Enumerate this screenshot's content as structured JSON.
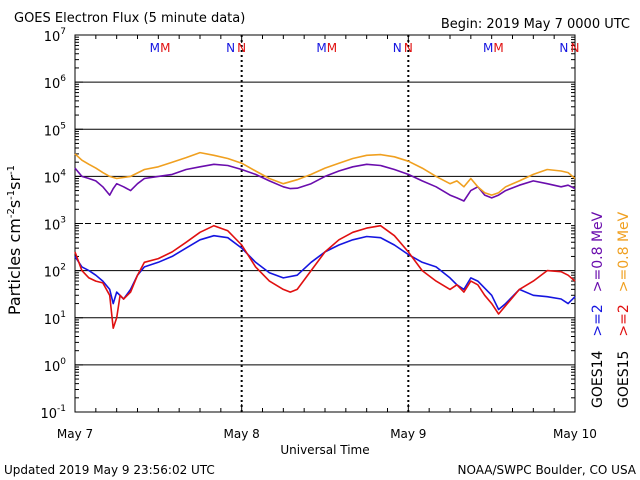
{
  "chart_data": {
    "type": "line",
    "title": "GOES Electron Flux (5 minute data)",
    "begin": "Begin: 2019 May 7 0000 UTC",
    "xlabel": "Universal Time",
    "ylabel_main": "Particles cm",
    "ylabel_exp1": "-2",
    "ylabel_s": "s",
    "ylabel_exp2": "-1",
    "ylabel_sr": "sr",
    "ylabel_exp3": "-1",
    "yscale": "log",
    "ylim": [
      0.1,
      10000000
    ],
    "y_ticks": [
      {
        "base": "10",
        "exp": "7"
      },
      {
        "base": "10",
        "exp": "6"
      },
      {
        "base": "10",
        "exp": "5"
      },
      {
        "base": "10",
        "exp": "4"
      },
      {
        "base": "10",
        "exp": "3"
      },
      {
        "base": "10",
        "exp": "2"
      },
      {
        "base": "10",
        "exp": "1"
      },
      {
        "base": "10",
        "exp": "0"
      },
      {
        "base": "10",
        "exp": "-1"
      }
    ],
    "x_ticks": [
      "May 7",
      "May 8",
      "May 9",
      "May 10"
    ],
    "xlim_hours": [
      0,
      72
    ],
    "grid": "horizontal",
    "threshold_line": 1000,
    "markers": [
      {
        "hour": 11.5,
        "label": "M",
        "color": "#1515e0"
      },
      {
        "hour": 13.0,
        "label": "M",
        "color": "#e01010"
      },
      {
        "hour": 22.4,
        "label": "N",
        "color": "#1515e0"
      },
      {
        "hour": 24.0,
        "label": "N",
        "color": "#e01010"
      },
      {
        "hour": 35.5,
        "label": "M",
        "color": "#1515e0"
      },
      {
        "hour": 37.0,
        "label": "M",
        "color": "#e01010"
      },
      {
        "hour": 46.4,
        "label": "N",
        "color": "#1515e0"
      },
      {
        "hour": 48.0,
        "label": "N",
        "color": "#e01010"
      },
      {
        "hour": 59.5,
        "label": "M",
        "color": "#1515e0"
      },
      {
        "hour": 61.0,
        "label": "M",
        "color": "#e01010"
      },
      {
        "hour": 70.4,
        "label": "N",
        "color": "#1515e0"
      },
      {
        "hour": 72.0,
        "label": "N",
        "color": "#e01010"
      }
    ],
    "series": [
      {
        "name": ">=0.8 MeV",
        "satellite": "GOES14",
        "color": "#6a0dad",
        "points": [
          [
            0,
            15000
          ],
          [
            1,
            10000
          ],
          [
            2,
            9000
          ],
          [
            3,
            8000
          ],
          [
            4,
            6000
          ],
          [
            5,
            4000
          ],
          [
            5.5,
            5500
          ],
          [
            6,
            7000
          ],
          [
            7,
            6000
          ],
          [
            8,
            5000
          ],
          [
            9,
            7000
          ],
          [
            10,
            9000
          ],
          [
            12,
            10000
          ],
          [
            14,
            11000
          ],
          [
            16,
            14000
          ],
          [
            18,
            16000
          ],
          [
            20,
            18000
          ],
          [
            22,
            17000
          ],
          [
            24,
            14000
          ],
          [
            26,
            11000
          ],
          [
            28,
            8000
          ],
          [
            30,
            6000
          ],
          [
            31,
            5500
          ],
          [
            32,
            5600
          ],
          [
            34,
            7000
          ],
          [
            36,
            10000
          ],
          [
            38,
            13000
          ],
          [
            40,
            16000
          ],
          [
            42,
            18000
          ],
          [
            44,
            17000
          ],
          [
            46,
            14000
          ],
          [
            48,
            11000
          ],
          [
            50,
            8000
          ],
          [
            52,
            6000
          ],
          [
            54,
            4000
          ],
          [
            55,
            3500
          ],
          [
            56,
            3000
          ],
          [
            57,
            5000
          ],
          [
            58,
            6000
          ],
          [
            59,
            4000
          ],
          [
            60,
            3500
          ],
          [
            61,
            4000
          ],
          [
            62,
            5000
          ],
          [
            64,
            6500
          ],
          [
            66,
            8000
          ],
          [
            68,
            7000
          ],
          [
            70,
            6000
          ],
          [
            71,
            6500
          ],
          [
            72,
            5500
          ]
        ]
      },
      {
        "name": ">=0.8 MeV",
        "satellite": "GOES15",
        "color": "#f0a020",
        "points": [
          [
            0,
            30000
          ],
          [
            1,
            22000
          ],
          [
            2,
            18000
          ],
          [
            3,
            15000
          ],
          [
            4,
            12000
          ],
          [
            5,
            10000
          ],
          [
            6,
            9000
          ],
          [
            8,
            10000
          ],
          [
            10,
            14000
          ],
          [
            12,
            16000
          ],
          [
            14,
            20000
          ],
          [
            16,
            25000
          ],
          [
            18,
            32000
          ],
          [
            20,
            28000
          ],
          [
            22,
            24000
          ],
          [
            24,
            19000
          ],
          [
            26,
            13000
          ],
          [
            28,
            9000
          ],
          [
            30,
            7000
          ],
          [
            32,
            8500
          ],
          [
            34,
            11000
          ],
          [
            36,
            15000
          ],
          [
            38,
            19000
          ],
          [
            40,
            24000
          ],
          [
            42,
            28000
          ],
          [
            44,
            29000
          ],
          [
            46,
            26000
          ],
          [
            48,
            21000
          ],
          [
            50,
            15000
          ],
          [
            52,
            10000
          ],
          [
            54,
            7000
          ],
          [
            55,
            8000
          ],
          [
            56,
            6000
          ],
          [
            57,
            9000
          ],
          [
            58,
            6000
          ],
          [
            59,
            4500
          ],
          [
            60,
            4000
          ],
          [
            61,
            4500
          ],
          [
            62,
            6000
          ],
          [
            64,
            8000
          ],
          [
            66,
            11000
          ],
          [
            68,
            14000
          ],
          [
            70,
            13000
          ],
          [
            71,
            12000
          ],
          [
            72,
            9000
          ]
        ]
      },
      {
        "name": ">=2 MeV",
        "satellite": "GOES14",
        "color": "#1515e0",
        "points": [
          [
            0,
            200
          ],
          [
            1,
            120
          ],
          [
            2,
            100
          ],
          [
            3,
            80
          ],
          [
            4,
            60
          ],
          [
            5,
            40
          ],
          [
            5.5,
            20
          ],
          [
            6,
            35
          ],
          [
            7,
            25
          ],
          [
            8,
            40
          ],
          [
            9,
            80
          ],
          [
            10,
            120
          ],
          [
            12,
            150
          ],
          [
            14,
            200
          ],
          [
            16,
            300
          ],
          [
            18,
            450
          ],
          [
            20,
            550
          ],
          [
            22,
            500
          ],
          [
            24,
            300
          ],
          [
            26,
            150
          ],
          [
            28,
            90
          ],
          [
            30,
            70
          ],
          [
            32,
            80
          ],
          [
            34,
            150
          ],
          [
            36,
            250
          ],
          [
            38,
            350
          ],
          [
            40,
            450
          ],
          [
            42,
            530
          ],
          [
            44,
            500
          ],
          [
            46,
            350
          ],
          [
            48,
            220
          ],
          [
            50,
            150
          ],
          [
            52,
            120
          ],
          [
            54,
            70
          ],
          [
            55,
            50
          ],
          [
            56,
            40
          ],
          [
            57,
            70
          ],
          [
            58,
            60
          ],
          [
            60,
            30
          ],
          [
            61,
            15
          ],
          [
            62,
            20
          ],
          [
            64,
            40
          ],
          [
            66,
            30
          ],
          [
            68,
            28
          ],
          [
            70,
            25
          ],
          [
            71,
            20
          ],
          [
            72,
            28
          ]
        ]
      },
      {
        "name": ">=2 MeV",
        "satellite": "GOES15",
        "color": "#e01010",
        "points": [
          [
            0,
            250
          ],
          [
            1,
            100
          ],
          [
            2,
            70
          ],
          [
            3,
            60
          ],
          [
            4,
            55
          ],
          [
            5,
            30
          ],
          [
            5.5,
            6
          ],
          [
            6,
            10
          ],
          [
            6.5,
            30
          ],
          [
            7,
            25
          ],
          [
            8,
            35
          ],
          [
            9,
            80
          ],
          [
            10,
            150
          ],
          [
            12,
            180
          ],
          [
            14,
            250
          ],
          [
            16,
            400
          ],
          [
            18,
            650
          ],
          [
            20,
            900
          ],
          [
            22,
            700
          ],
          [
            24,
            350
          ],
          [
            26,
            120
          ],
          [
            28,
            60
          ],
          [
            30,
            40
          ],
          [
            31,
            35
          ],
          [
            32,
            40
          ],
          [
            34,
            100
          ],
          [
            36,
            250
          ],
          [
            38,
            450
          ],
          [
            40,
            650
          ],
          [
            42,
            800
          ],
          [
            44,
            900
          ],
          [
            46,
            550
          ],
          [
            48,
            250
          ],
          [
            50,
            100
          ],
          [
            52,
            60
          ],
          [
            54,
            40
          ],
          [
            55,
            50
          ],
          [
            56,
            35
          ],
          [
            57,
            60
          ],
          [
            58,
            50
          ],
          [
            59,
            30
          ],
          [
            60,
            20
          ],
          [
            61,
            12
          ],
          [
            62,
            18
          ],
          [
            64,
            40
          ],
          [
            66,
            60
          ],
          [
            68,
            100
          ],
          [
            70,
            95
          ],
          [
            71,
            80
          ],
          [
            72,
            60
          ]
        ]
      }
    ],
    "legend": {
      "col1": {
        "labels": [
          ">=0.8 MeV",
          ">=2"
        ],
        "colors": [
          "#6a0dad",
          "#1515e0"
        ],
        "sat": "GOES14"
      },
      "col2": {
        "labels": [
          ">=0.8 MeV",
          ">=2"
        ],
        "colors": [
          "#f0a020",
          "#e01010"
        ],
        "sat": "GOES15"
      }
    }
  },
  "footer": {
    "updated": "Updated 2019 May  9 23:56:02 UTC",
    "source": "NOAA/SWPC Boulder, CO USA"
  }
}
